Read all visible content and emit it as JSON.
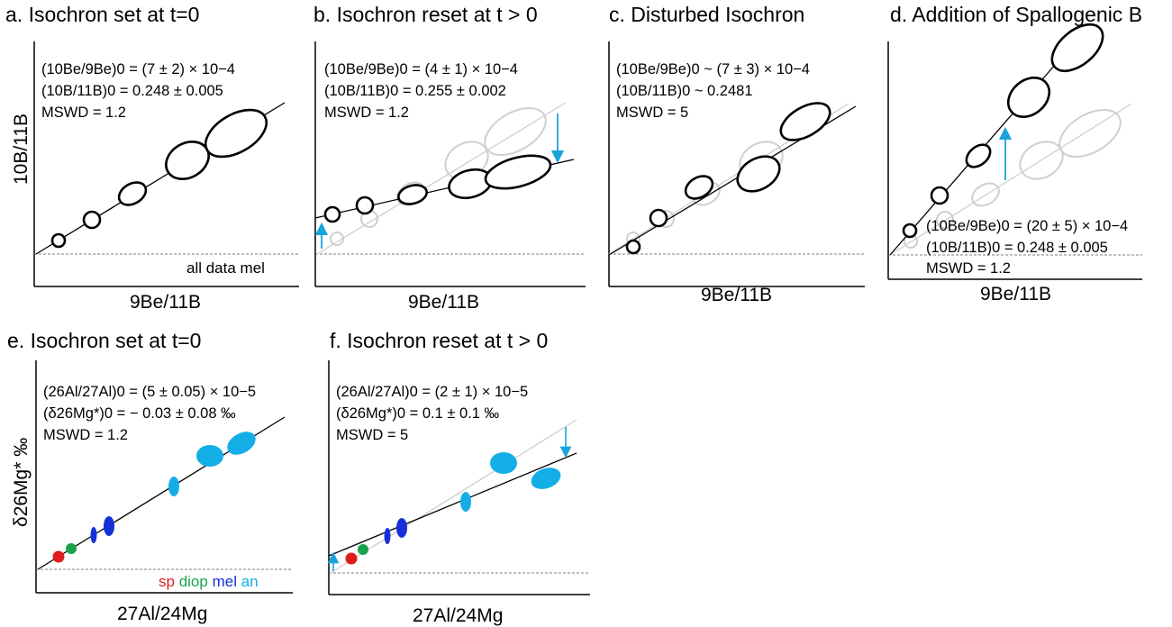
{
  "colors": {
    "axis": "#000000",
    "line": "#000000",
    "ghost": "#cfcfcf",
    "arrow": "#1ba3dc",
    "dashed": "#555555",
    "sp": "#e01b1b",
    "diop": "#1aa34a",
    "mel": "#1530d8",
    "an": "#14aee6"
  },
  "axis_labels": {
    "be_y": "10B/11B",
    "be_x": "9Be/11B",
    "al_y": "δ26Mg* ‰",
    "al_x": "27Al/24Mg"
  },
  "panels": {
    "a": {
      "title": "a. Isochron set at t=0",
      "ann1": "(10Be/9Be)0 = (7 ± 2) × 10−4",
      "ann2": "(10B/11B)0 = 0.248 ± 0.005",
      "ann3": "MSWD = 1.2",
      "note": "all data mel"
    },
    "b": {
      "title": "b. Isochron reset at t > 0",
      "ann1": "(10Be/9Be)0 = (4 ± 1) × 10−4",
      "ann2": "(10B/11B)0 = 0.255 ± 0.002",
      "ann3": "MSWD = 1.2"
    },
    "c": {
      "title": "c. Disturbed Isochron",
      "ann1": "(10Be/9Be)0 ~ (7 ± 3) × 10−4",
      "ann2": "(10B/11B)0 ~ 0.2481",
      "ann3": "MSWD = 5"
    },
    "d": {
      "title": "d. Addition of Spallogenic B",
      "ann1": "(10Be/9Be)0 = (20 ± 5) × 10−4",
      "ann2": "(10B/11B)0 = 0.248 ± 0.005",
      "ann3": "MSWD = 1.2"
    },
    "e": {
      "title": "e. Isochron set at t=0",
      "ann1": "(26Al/27Al)0 = (5 ± 0.05) × 10−5",
      "ann2": "(δ26Mg*)0 = − 0.03 ± 0.08 ‰",
      "ann3": "MSWD = 1.2",
      "legend": {
        "sp": "sp",
        "diop": "diop",
        "mel": "mel",
        "an": "an"
      }
    },
    "f": {
      "title": "f. Isochron reset at t > 0",
      "ann1": "(26Al/27Al)0 = (2 ± 1) × 10−5",
      "ann2": "(δ26Mg*)0 = 0.1 ± 0.1 ‰",
      "ann3": "MSWD = 5"
    }
  }
}
